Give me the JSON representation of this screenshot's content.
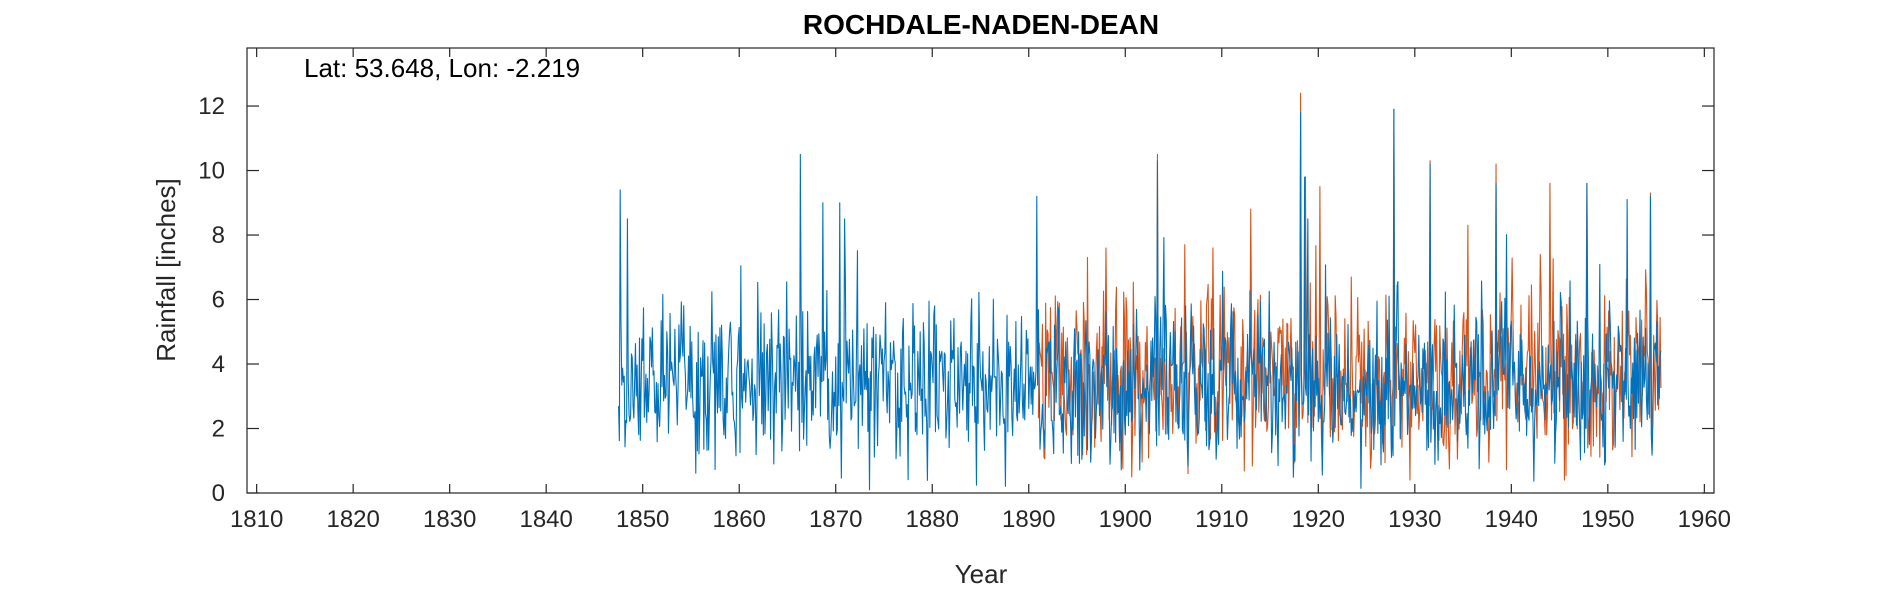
{
  "chart_data": {
    "type": "line",
    "title": "ROCHDALE-NADEN-DEAN",
    "annotation": "Lat: 53.648, Lon: -2.219",
    "xlabel": "Year",
    "ylabel": "Rainfall [inches]",
    "xlim": [
      1809,
      1961
    ],
    "ylim": [
      0,
      13.8
    ],
    "xticks": [
      1810,
      1820,
      1830,
      1840,
      1850,
      1860,
      1870,
      1880,
      1890,
      1900,
      1910,
      1920,
      1930,
      1940,
      1950,
      1960
    ],
    "yticks": [
      0,
      2,
      4,
      6,
      8,
      10,
      12
    ],
    "grid": false,
    "series": [
      {
        "color": "#D95319",
        "resolution": "monthly",
        "x_start": 1891.0,
        "x_end": 1955.5,
        "peaks": [
          {
            "x": 1918.2,
            "y": 12.4
          },
          {
            "x": 1927.8,
            "y": 11.9
          },
          {
            "x": 1903.3,
            "y": 10.5
          },
          {
            "x": 1931.6,
            "y": 10.3
          },
          {
            "x": 1938.4,
            "y": 10.2
          },
          {
            "x": 1918.7,
            "y": 9.8
          },
          {
            "x": 1947.8,
            "y": 9.6
          },
          {
            "x": 1944.0,
            "y": 9.6
          },
          {
            "x": 1920.2,
            "y": 9.5
          },
          {
            "x": 1954.4,
            "y": 9.3
          },
          {
            "x": 1913.0,
            "y": 8.8
          },
          {
            "x": 1935.5,
            "y": 8.3
          },
          {
            "x": 1909.1,
            "y": 7.6
          },
          {
            "x": 1906.2,
            "y": 7.7
          },
          {
            "x": 1896.1,
            "y": 7.3
          }
        ],
        "monthly_range": [
          0.3,
          8.5
        ]
      },
      {
        "color": "#0072BD",
        "resolution": "monthly",
        "x_start": 1847.5,
        "x_end": 1955.5,
        "peaks": [
          {
            "x": 1847.7,
            "y": 9.4
          },
          {
            "x": 1848.4,
            "y": 8.5
          },
          {
            "x": 1866.3,
            "y": 10.5
          },
          {
            "x": 1868.7,
            "y": 9.0
          },
          {
            "x": 1870.4,
            "y": 9.0
          },
          {
            "x": 1890.8,
            "y": 9.2
          },
          {
            "x": 1903.3,
            "y": 10.3
          },
          {
            "x": 1918.2,
            "y": 11.8
          },
          {
            "x": 1918.6,
            "y": 9.8
          },
          {
            "x": 1927.8,
            "y": 11.9
          },
          {
            "x": 1931.6,
            "y": 10.2
          },
          {
            "x": 1938.4,
            "y": 9.6
          },
          {
            "x": 1947.8,
            "y": 9.6
          },
          {
            "x": 1954.4,
            "y": 9.2
          },
          {
            "x": 1952.0,
            "y": 9.1
          }
        ],
        "monthly_range": [
          0.0,
          8.5
        ]
      }
    ]
  }
}
